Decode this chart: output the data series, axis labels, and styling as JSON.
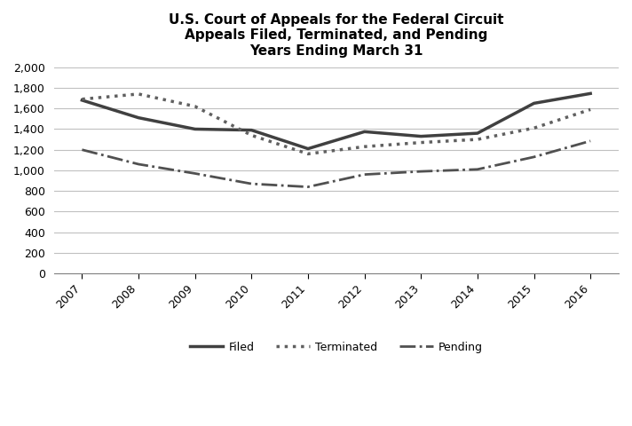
{
  "title_line1": "U.S. Court of Appeals for the Federal Circuit",
  "title_line2": "Appeals Filed, Terminated, and Pending",
  "title_line3": "Years Ending March 31",
  "years": [
    2007,
    2008,
    2009,
    2010,
    2011,
    2012,
    2013,
    2014,
    2015,
    2016
  ],
  "filed": [
    1680,
    1510,
    1400,
    1390,
    1210,
    1375,
    1330,
    1360,
    1650,
    1745
  ],
  "terminated": [
    1690,
    1740,
    1620,
    1340,
    1160,
    1230,
    1270,
    1300,
    1410,
    1590
  ],
  "pending": [
    1200,
    1060,
    970,
    870,
    840,
    960,
    990,
    1010,
    1130,
    1285
  ],
  "ylim": [
    0,
    2000
  ],
  "yticks": [
    0,
    200,
    400,
    600,
    800,
    1000,
    1200,
    1400,
    1600,
    1800,
    2000
  ],
  "filed_color": "#404040",
  "terminated_color": "#606060",
  "pending_color": "#505050",
  "background_color": "#ffffff",
  "grid_color": "#c0c0c0"
}
